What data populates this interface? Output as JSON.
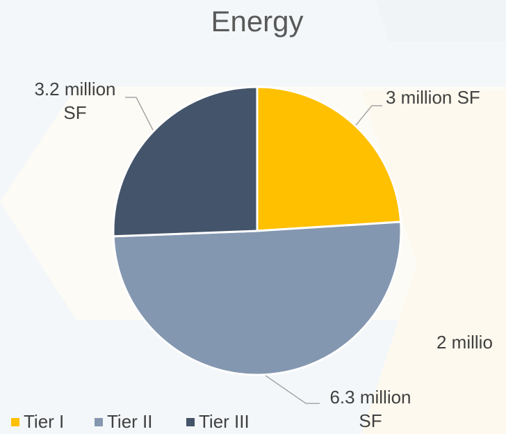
{
  "chart_data": {
    "type": "pie",
    "title": "Energy",
    "categories": [
      "Tier I",
      "Tier II",
      "Tier III"
    ],
    "values": [
      3,
      6.3,
      3.2
    ],
    "value_labels": [
      "3 million SF",
      "6.3 million SF",
      "3.2 million SF"
    ],
    "colors": [
      "#ffc000",
      "#8497b0",
      "#44546a"
    ],
    "legend": "bottom",
    "annotations": [
      "2 millio"
    ]
  }
}
